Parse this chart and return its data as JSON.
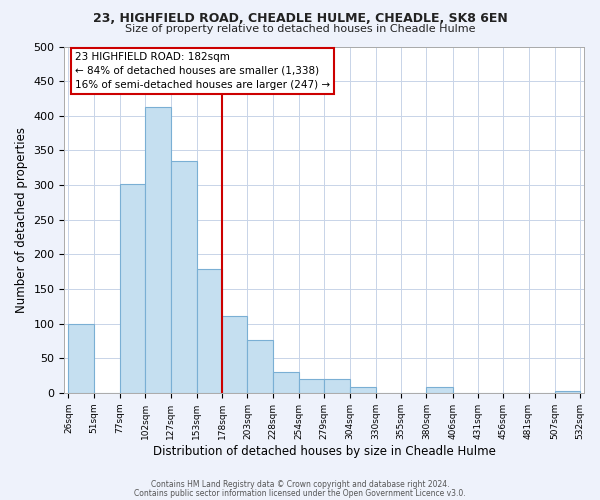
{
  "title": "23, HIGHFIELD ROAD, CHEADLE HULME, CHEADLE, SK8 6EN",
  "subtitle": "Size of property relative to detached houses in Cheadle Hulme",
  "bar_edges": [
    26,
    51,
    77,
    102,
    127,
    153,
    178,
    203,
    228,
    254,
    279,
    304,
    330,
    355,
    380,
    406,
    431,
    456,
    481,
    507,
    532
  ],
  "bar_heights": [
    99,
    0,
    301,
    413,
    334,
    179,
    111,
    77,
    30,
    20,
    20,
    8,
    0,
    0,
    8,
    0,
    0,
    0,
    0,
    3
  ],
  "bar_color": "#c5dff0",
  "bar_edgecolor": "#7aafd4",
  "vline_x": 178,
  "vline_color": "#cc0000",
  "xlabel": "Distribution of detached houses by size in Cheadle Hulme",
  "ylabel": "Number of detached properties",
  "ylim": [
    0,
    500
  ],
  "yticks": [
    0,
    50,
    100,
    150,
    200,
    250,
    300,
    350,
    400,
    450,
    500
  ],
  "annotation_title": "23 HIGHFIELD ROAD: 182sqm",
  "annotation_line1": "← 84% of detached houses are smaller (1,338)",
  "annotation_line2": "16% of semi-detached houses are larger (247) →",
  "footer1": "Contains HM Land Registry data © Crown copyright and database right 2024.",
  "footer2": "Contains public sector information licensed under the Open Government Licence v3.0.",
  "bg_color": "#eef2fb",
  "plot_bg_color": "#ffffff",
  "grid_color": "#c8d4e8"
}
